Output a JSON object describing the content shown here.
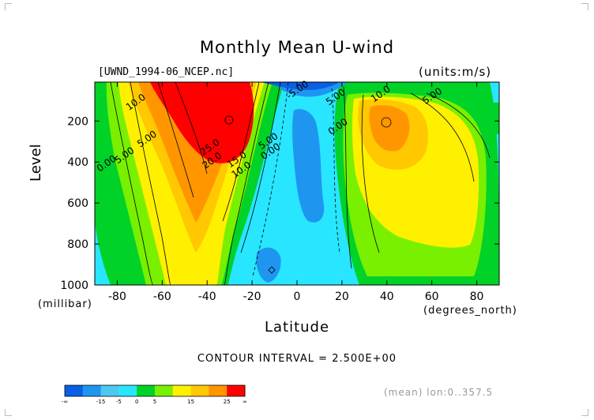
{
  "chart_data": {
    "type": "heatmap",
    "title": "Monthly Mean U-wind",
    "subtitle": "[UWND_1994-06_NCEP.nc]",
    "units_label": "(units:m/s)",
    "xlabel": "Latitude",
    "xunit": "(degrees_north)",
    "ylabel": "Level",
    "yunit": "(millibar)",
    "xlim": [
      -90,
      90
    ],
    "ylim": [
      1000,
      10
    ],
    "x_ticks": [
      -80,
      -60,
      -40,
      -20,
      0,
      20,
      40,
      60,
      80
    ],
    "x_tick_labels": [
      "-80",
      "-60",
      "-40",
      "-20",
      "0",
      "20",
      "40",
      "60",
      "80"
    ],
    "y_ticks": [
      200,
      400,
      600,
      800,
      1000
    ],
    "y_tick_labels": [
      "200",
      "400",
      "600",
      "800",
      "1000"
    ],
    "contour_interval_text": "CONTOUR INTERVAL = 2.500E+00",
    "contour_labels": [
      {
        "text": "10.0",
        "lat": -71,
        "lev": 120
      },
      {
        "text": "5.00",
        "lat": -66,
        "lev": 300
      },
      {
        "text": "5.00",
        "lat": -76,
        "lev": 380
      },
      {
        "text": "0.00",
        "lat": -84,
        "lev": 420
      },
      {
        "text": "25.0",
        "lat": -38,
        "lev": 340
      },
      {
        "text": "20.0",
        "lat": -37,
        "lev": 405
      },
      {
        "text": "15.0",
        "lat": -26,
        "lev": 400
      },
      {
        "text": "10.0",
        "lat": -24,
        "lev": 450
      },
      {
        "text": "5.00",
        "lat": -12,
        "lev": 310
      },
      {
        "text": "0.00",
        "lat": -11,
        "lev": 360
      },
      {
        "text": "-5.00",
        "lat": 1,
        "lev": 60
      },
      {
        "text": "5.00",
        "lat": 18,
        "lev": 95
      },
      {
        "text": "0.00",
        "lat": 19,
        "lev": 240
      },
      {
        "text": "10.0",
        "lat": 38,
        "lev": 80
      },
      {
        "text": "5.00",
        "lat": 61,
        "lev": 90
      }
    ],
    "colorbar": {
      "colors": [
        "#0a5fe6",
        "#1e96f0",
        "#4ec8f0",
        "#28e6ff",
        "#00d228",
        "#78f000",
        "#fff000",
        "#ffc800",
        "#ff9600",
        "#ff0000"
      ],
      "tick_labels": [
        "-∞",
        "-15",
        "-5",
        "0",
        "5",
        "15",
        "25",
        "∞"
      ]
    },
    "footnote": "(mean) lon:0..357.5"
  }
}
